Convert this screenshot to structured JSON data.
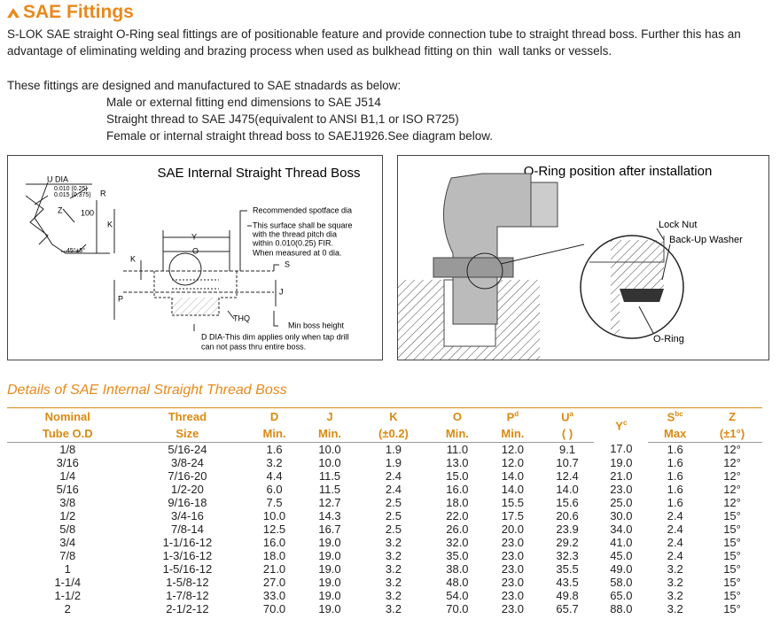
{
  "header": {
    "title": "SAE Fittings"
  },
  "intro": [
    "S-LOK SAE straight O-Ring seal fittings are of positionable feature and provide connection tube to straight thread boss. Further this has an",
    "advantage of eliminating welding and brazing process when used as bulkhead fitting on thin  wall tanks or vessels."
  ],
  "standards": {
    "lead": "These fittings are designed and manufactured to SAE stnadards as below:",
    "items": [
      "Male or external fitting end dimensions to SAE J514",
      "Straight thread to SAE J475(equivalent to ANSI B1,1 or ISO R725)",
      "Female or internal straight thread boss to SAEJ1926.See diagram below."
    ]
  },
  "diagram_left": {
    "title": "SAE Internal Straight Thread Boss",
    "labels": [
      "U DIA",
      "0.010 (0.25)",
      "0.015 (0.375)",
      "R",
      "Z",
      "100",
      "K",
      "45°±5°",
      "Recommended spotface dia",
      "Y",
      "O",
      "S",
      "K",
      "J",
      "P",
      "THQ",
      "Min boss height"
    ],
    "note": [
      "This surface shall be square",
      "with the thread pitch dia",
      "within 0.010(0.25) FIR.",
      "When measured at 0 dia."
    ],
    "d_note": [
      "D DIA-This dim applies only when tap drill",
      "can not pass thru entire boss."
    ]
  },
  "diagram_right": {
    "title": "O-Ring position after installation",
    "labels": [
      "Lock Nut",
      "Back-Up Washer",
      "O-Ring"
    ]
  },
  "table": {
    "title": "Details of SAE Internal Straight Thread Boss",
    "columns": [
      {
        "label": "Nominal",
        "sub": "Tube O.D"
      },
      {
        "label": "Thread",
        "sub": "Size"
      },
      {
        "label": "D",
        "sub": "Min."
      },
      {
        "label": "J",
        "sub": "Min."
      },
      {
        "label": "K",
        "sub": "(±0.2)"
      },
      {
        "label": "O",
        "sub": "Min."
      },
      {
        "label": "P",
        "sup": "d",
        "sub": "Min."
      },
      {
        "label": "U",
        "sup": "a",
        "sub": "(       )"
      },
      {
        "label": "Y",
        "sup": "c"
      },
      {
        "label": "S",
        "sup": "bc",
        "sub": "Max"
      },
      {
        "label": "Z",
        "sub": "(±1°)"
      }
    ],
    "rows": [
      [
        "1/8",
        "5/16-24",
        "1.6",
        "10.0",
        "1.9",
        "11.0",
        "12.0",
        "9.1",
        "17.0",
        "1.6",
        "12°"
      ],
      [
        "3/16",
        "3/8-24",
        "3.2",
        "10.0",
        "1.9",
        "13.0",
        "12.0",
        "10.7",
        "19.0",
        "1.6",
        "12°"
      ],
      [
        "1/4",
        "7/16-20",
        "4.4",
        "11.5",
        "2.4",
        "15.0",
        "14.0",
        "12.4",
        "21.0",
        "1.6",
        "12°"
      ],
      [
        "5/16",
        "1/2-20",
        "6.0",
        "11.5",
        "2.4",
        "16.0",
        "14.0",
        "14.0",
        "23.0",
        "1.6",
        "12°"
      ],
      [
        "3/8",
        "9/16-18",
        "7.5",
        "12.7",
        "2.5",
        "18.0",
        "15.5",
        "15.6",
        "25.0",
        "1.6",
        "12°"
      ],
      [
        "1/2",
        "3/4-16",
        "10.0",
        "14.3",
        "2.5",
        "22.0",
        "17.5",
        "20.6",
        "30.0",
        "2.4",
        "15°"
      ],
      [
        "5/8",
        "7/8-14",
        "12.5",
        "16.7",
        "2.5",
        "26.0",
        "20.0",
        "23.9",
        "34.0",
        "2.4",
        "15°"
      ],
      [
        "3/4",
        "1-1/16-12",
        "16.0",
        "19.0",
        "3.2",
        "32.0",
        "23.0",
        "29.2",
        "41.0",
        "2.4",
        "15°"
      ],
      [
        "7/8",
        "1-3/16-12",
        "18.0",
        "19.0",
        "3.2",
        "35.0",
        "23.0",
        "32.3",
        "45.0",
        "2.4",
        "15°"
      ],
      [
        "1",
        "1-5/16-12",
        "21.0",
        "19.0",
        "3.2",
        "38.0",
        "23.0",
        "35.5",
        "49.0",
        "3.2",
        "15°"
      ],
      [
        "1-1/4",
        "1-5/8-12",
        "27.0",
        "19.0",
        "3.2",
        "48.0",
        "23.0",
        "43.5",
        "58.0",
        "3.2",
        "15°"
      ],
      [
        "1-1/2",
        "1-7/8-12",
        "33.0",
        "19.0",
        "3.2",
        "54.0",
        "23.0",
        "49.8",
        "65.0",
        "3.2",
        "15°"
      ],
      [
        "2",
        "2-1/2-12",
        "70.0",
        "19.0",
        "3.2",
        "70.0",
        "23.0",
        "65.7",
        "88.0",
        "3.2",
        "15°"
      ]
    ]
  }
}
